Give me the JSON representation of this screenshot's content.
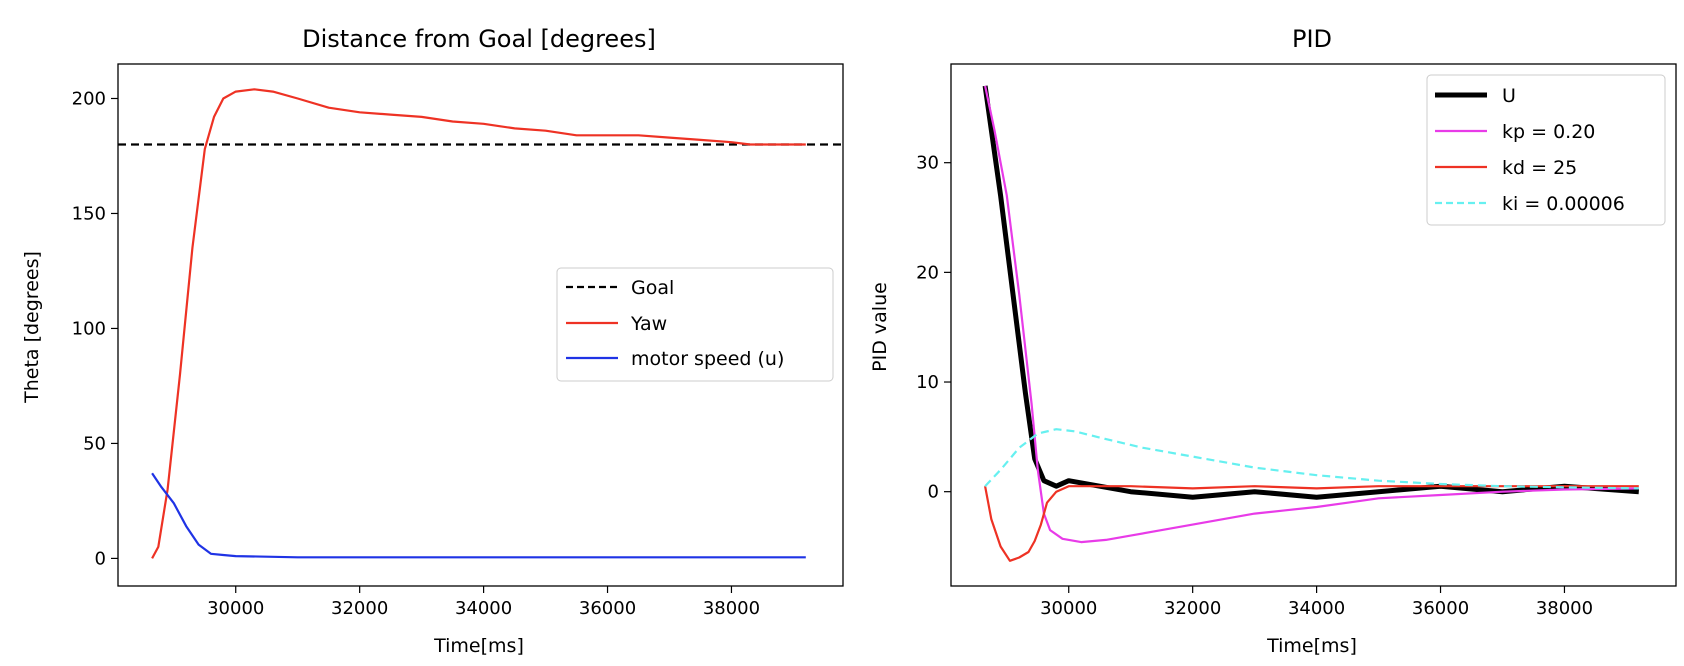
{
  "chart_data": [
    {
      "type": "line",
      "title": "Distance from Goal [degrees]",
      "xlabel": "Time[ms]",
      "ylabel": "Theta [degrees]",
      "xlim": [
        28100,
        39800
      ],
      "ylim": [
        -12,
        215
      ],
      "xticks": [
        30000,
        32000,
        34000,
        36000,
        38000
      ],
      "yticks": [
        0,
        50,
        100,
        150,
        200
      ],
      "legend_position": "center-right",
      "series": [
        {
          "name": "Goal",
          "color": "#000000",
          "style": "dashed",
          "x": [
            28100,
            39800
          ],
          "y": [
            180,
            180
          ]
        },
        {
          "name": "Yaw",
          "color": "#ee3224",
          "style": "solid",
          "x": [
            28650,
            28750,
            28900,
            29100,
            29300,
            29500,
            29650,
            29800,
            30000,
            30300,
            30600,
            31000,
            31500,
            32000,
            32500,
            33000,
            33500,
            34000,
            34500,
            35000,
            35500,
            36000,
            36500,
            37000,
            37500,
            38000,
            38300,
            38600,
            39000,
            39200
          ],
          "y": [
            0,
            5,
            30,
            80,
            135,
            178,
            192,
            200,
            203,
            204,
            203,
            200,
            196,
            194,
            193,
            192,
            190,
            189,
            187,
            186,
            184,
            184,
            184,
            183,
            182,
            181,
            180,
            180,
            180,
            180
          ]
        },
        {
          "name": "motor speed (u)",
          "color": "#1f33e5",
          "style": "solid",
          "x": [
            28650,
            28800,
            29000,
            29200,
            29400,
            29600,
            29800,
            30000,
            31000,
            32000,
            34000,
            36000,
            38000,
            39200
          ],
          "y": [
            37,
            31,
            24,
            14,
            6,
            2,
            1.5,
            1,
            0.5,
            0.5,
            0.5,
            0.5,
            0.5,
            0.5
          ]
        }
      ]
    },
    {
      "type": "line",
      "title": "PID",
      "xlabel": "Time[ms]",
      "ylabel": "PID value",
      "xlim": [
        28100,
        39800
      ],
      "ylim": [
        -8.6,
        39
      ],
      "xticks": [
        30000,
        32000,
        34000,
        36000,
        38000
      ],
      "yticks": [
        0,
        10,
        20,
        30
      ],
      "legend_position": "upper-right",
      "series": [
        {
          "name": "U",
          "color": "#000000",
          "style": "solid",
          "width": 5,
          "x": [
            28650,
            28750,
            28900,
            29100,
            29300,
            29450,
            29600,
            29800,
            30000,
            31000,
            32000,
            33000,
            34000,
            35000,
            36000,
            37000,
            38000,
            39200
          ],
          "y": [
            37,
            33,
            27,
            18,
            9,
            3,
            1,
            0.5,
            1,
            0,
            -0.5,
            0,
            -0.5,
            0,
            0.5,
            0,
            0.5,
            0
          ]
        },
        {
          "name": "kp = 0.20",
          "color": "#e83be8",
          "style": "solid",
          "x": [
            28650,
            28800,
            29000,
            29200,
            29400,
            29500,
            29600,
            29700,
            29900,
            30200,
            30600,
            31000,
            31500,
            32000,
            32500,
            33000,
            33500,
            34000,
            34500,
            35000,
            36000,
            37000,
            38000,
            39200
          ],
          "y": [
            37,
            33,
            27,
            18,
            8,
            2,
            -2,
            -3.5,
            -4.3,
            -4.6,
            -4.4,
            -4,
            -3.5,
            -3,
            -2.5,
            -2,
            -1.7,
            -1.4,
            -1,
            -0.6,
            -0.3,
            0,
            0.2,
            0.3
          ]
        },
        {
          "name": "kd = 25",
          "color": "#ee3224",
          "style": "solid",
          "x": [
            28650,
            28750,
            28900,
            29050,
            29200,
            29350,
            29450,
            29550,
            29650,
            29800,
            30000,
            31000,
            32000,
            33000,
            34000,
            35000,
            36000,
            37000,
            38000,
            39200
          ],
          "y": [
            0.5,
            -2.5,
            -5,
            -6.3,
            -6,
            -5.5,
            -4.5,
            -3,
            -1,
            0,
            0.5,
            0.5,
            0.3,
            0.5,
            0.3,
            0.5,
            0.5,
            0.5,
            0.5,
            0.5
          ]
        },
        {
          "name": "ki = 0.00006",
          "color": "#66f0f0",
          "style": "dashed",
          "x": [
            28650,
            28900,
            29200,
            29500,
            29800,
            30100,
            30600,
            31200,
            32000,
            33000,
            34000,
            35000,
            36000,
            37000,
            38000,
            39200
          ],
          "y": [
            0.5,
            2,
            4,
            5.3,
            5.7,
            5.5,
            4.8,
            4,
            3.2,
            2.2,
            1.5,
            1,
            0.7,
            0.5,
            0.4,
            0.3
          ]
        }
      ]
    }
  ]
}
